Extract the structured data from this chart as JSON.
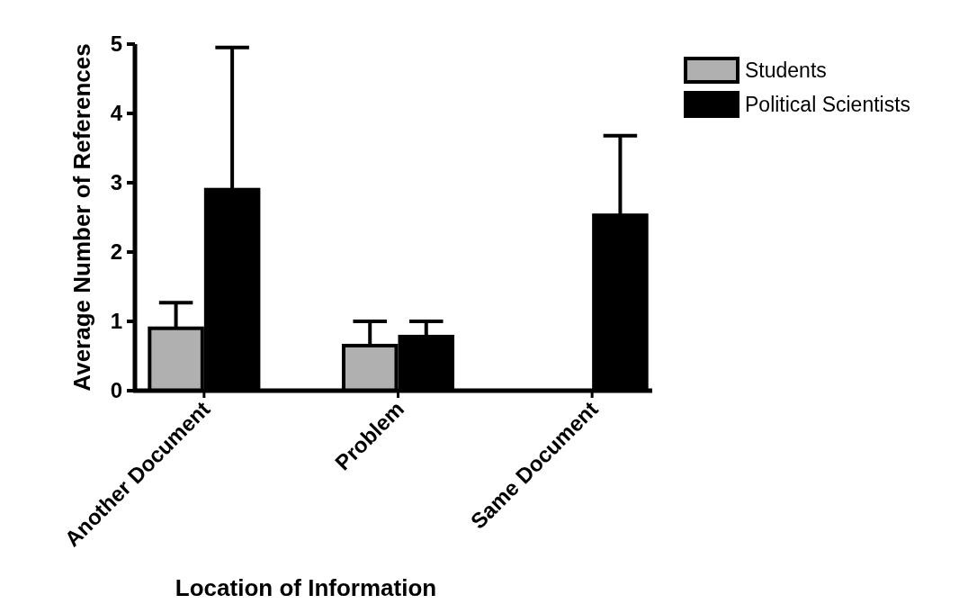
{
  "chart_data": {
    "type": "bar",
    "xlabel": "Location of Information",
    "ylabel": "Average Number of References",
    "categories": [
      "Another Document",
      "Problem",
      "Same Document"
    ],
    "series": [
      {
        "name": "Students",
        "color": "#b0b0b0",
        "values": [
          0.9,
          0.65,
          0
        ],
        "errors": [
          [
            0.9,
            1.27
          ],
          [
            0.65,
            1.0
          ],
          null
        ]
      },
      {
        "name": "Political Scientists",
        "color": "#000000",
        "values": [
          2.9,
          0.78,
          2.53
        ],
        "errors": [
          [
            2.9,
            4.95
          ],
          [
            0.78,
            1.0
          ],
          [
            2.53,
            3.68
          ]
        ]
      }
    ],
    "ylim": [
      0,
      5
    ],
    "yticks": [
      0,
      1,
      2,
      3,
      4,
      5
    ],
    "grid": false,
    "legend": "top right"
  }
}
